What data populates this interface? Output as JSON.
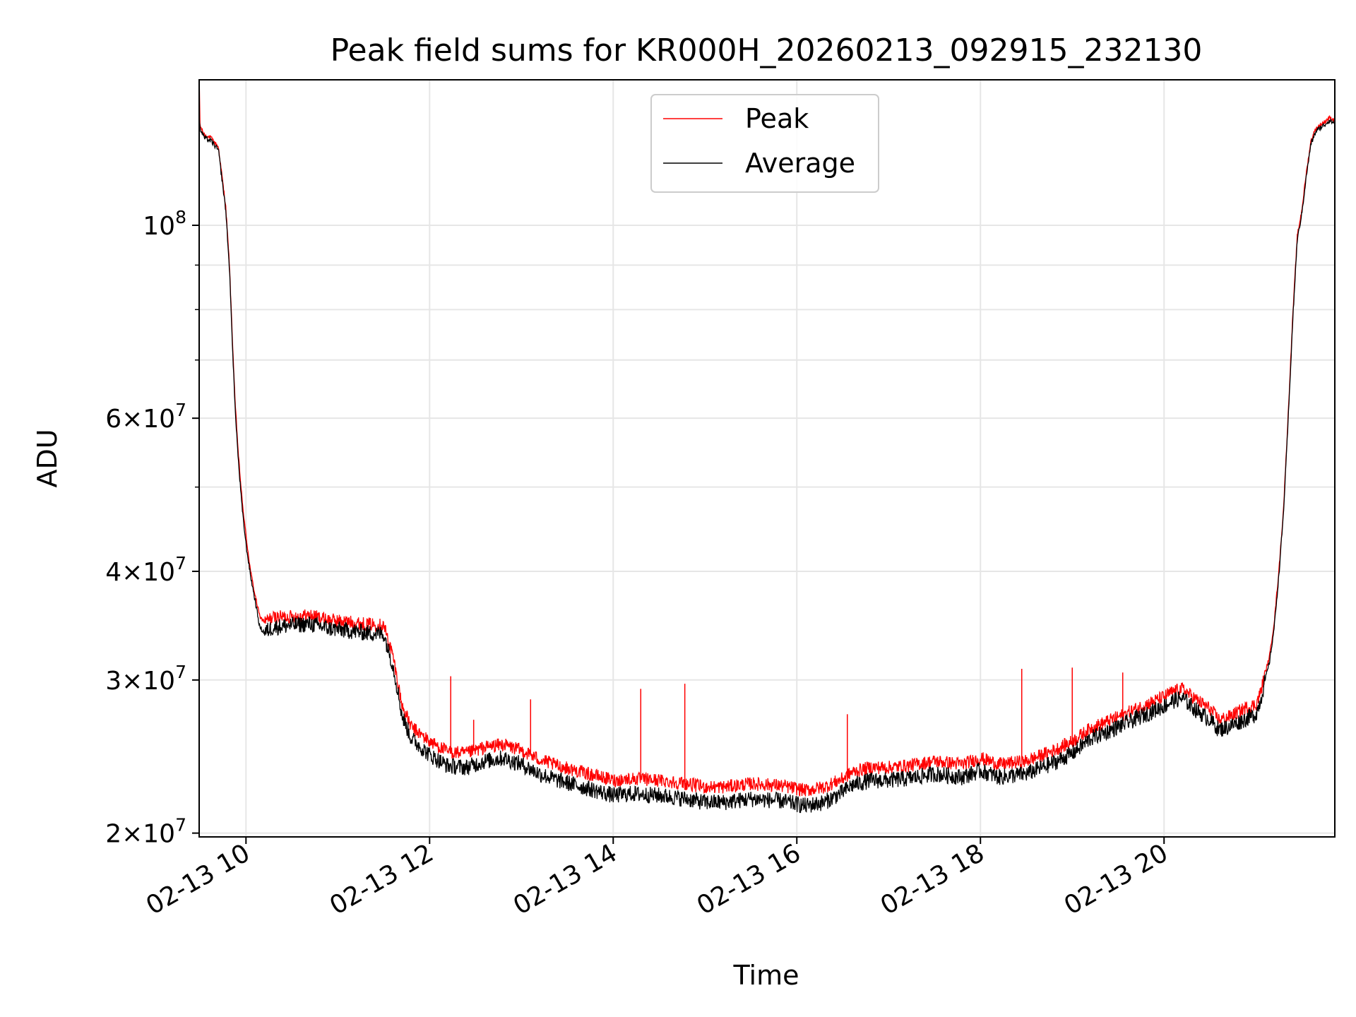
{
  "chart_data": {
    "type": "line",
    "title": "Peak field sums for KR000H_20260213_092915_232130",
    "xlabel": "Time",
    "ylabel": "ADU",
    "yscale": "log",
    "xlim": [
      9.49,
      21.86
    ],
    "ylim": [
      19800000,
      147000000
    ],
    "grid": true,
    "legend_position": "top-center",
    "x_unit": "hours since 02-13 00:00",
    "x_ticks": [
      {
        "value": 10,
        "label": "02-13 10"
      },
      {
        "value": 12,
        "label": "02-13 12"
      },
      {
        "value": 14,
        "label": "02-13 14"
      },
      {
        "value": 16,
        "label": "02-13 16"
      },
      {
        "value": 18,
        "label": "02-13 18"
      },
      {
        "value": 20,
        "label": "02-13 20"
      }
    ],
    "y_ticks": [
      {
        "value": 20000000,
        "mantissa": "2",
        "exp": "7",
        "label": "2 × 10^7"
      },
      {
        "value": 30000000,
        "mantissa": "3",
        "exp": "7",
        "label": "3 × 10^7"
      },
      {
        "value": 40000000,
        "mantissa": "4",
        "exp": "7",
        "label": "4 × 10^7"
      },
      {
        "value": 60000000,
        "mantissa": "6",
        "exp": "7",
        "label": "6 × 10^7"
      },
      {
        "value": 100000000,
        "mantissa": "",
        "exp": "8",
        "label": "10^8"
      }
    ],
    "y_minor_ticks": [
      50000000,
      70000000,
      80000000,
      90000000
    ],
    "series": [
      {
        "name": "Peak",
        "color": "#ff0000",
        "x": [
          9.49,
          9.5,
          9.55,
          9.62,
          9.7,
          9.78,
          9.82,
          9.85,
          9.88,
          9.92,
          9.96,
          10.0,
          10.05,
          10.1,
          10.15,
          10.2,
          10.25,
          10.3,
          10.5,
          10.7,
          10.9,
          11.1,
          11.3,
          11.5,
          11.6,
          11.65,
          11.7,
          11.8,
          12.0,
          12.2,
          12.4,
          12.6,
          12.8,
          13.0,
          13.2,
          13.4,
          13.6,
          13.8,
          14.0,
          14.2,
          14.5,
          14.8,
          15.0,
          15.2,
          15.5,
          15.8,
          16.0,
          16.1,
          16.3,
          16.5,
          16.6,
          16.8,
          17.0,
          17.2,
          17.5,
          17.8,
          18.0,
          18.2,
          18.5,
          18.8,
          19.0,
          19.2,
          19.5,
          19.8,
          20.0,
          20.1,
          20.2,
          20.35,
          20.5,
          20.6,
          20.7,
          20.9,
          21.0,
          21.05,
          21.1,
          21.15,
          21.2,
          21.25,
          21.3,
          21.35,
          21.4,
          21.45,
          21.5,
          21.55,
          21.6,
          21.65,
          21.7,
          21.75,
          21.8,
          21.86
        ],
        "y": [
          150000000,
          130000000,
          127000000,
          126000000,
          123000000,
          105000000,
          90000000,
          75000000,
          63000000,
          54000000,
          48000000,
          44000000,
          40000000,
          37500000,
          35500000,
          35000000,
          35200000,
          35400000,
          35500000,
          35600000,
          35200000,
          35000000,
          34800000,
          34700000,
          32000000,
          30000000,
          28000000,
          26500000,
          25500000,
          24800000,
          24700000,
          25100000,
          25300000,
          24900000,
          24300000,
          23900000,
          23600000,
          23300000,
          23000000,
          23100000,
          23000000,
          22800000,
          22600000,
          22600000,
          22800000,
          22700000,
          22500000,
          22400000,
          22600000,
          23100000,
          23500000,
          23800000,
          23800000,
          23900000,
          24200000,
          24000000,
          24400000,
          24000000,
          24200000,
          24900000,
          25500000,
          26400000,
          27200000,
          28100000,
          28700000,
          29100000,
          29300000,
          28500000,
          27800000,
          27000000,
          27200000,
          27900000,
          28100000,
          29000000,
          30500000,
          32000000,
          35000000,
          40000000,
          47000000,
          60000000,
          78000000,
          97000000,
          104000000,
          115000000,
          125000000,
          129000000,
          130500000,
          131500000,
          133000000,
          132000000
        ]
      },
      {
        "name": "Average",
        "color": "#000000",
        "x": [
          9.49,
          9.5,
          9.55,
          9.62,
          9.7,
          9.78,
          9.82,
          9.85,
          9.88,
          9.92,
          9.96,
          10.0,
          10.05,
          10.1,
          10.15,
          10.2,
          10.25,
          10.3,
          10.5,
          10.7,
          10.9,
          11.1,
          11.3,
          11.5,
          11.6,
          11.65,
          11.7,
          11.8,
          12.0,
          12.2,
          12.4,
          12.6,
          12.8,
          13.0,
          13.2,
          13.4,
          13.6,
          13.8,
          14.0,
          14.2,
          14.5,
          14.8,
          15.0,
          15.2,
          15.5,
          15.8,
          16.0,
          16.1,
          16.3,
          16.5,
          16.6,
          16.8,
          17.0,
          17.2,
          17.5,
          17.8,
          18.0,
          18.2,
          18.5,
          18.8,
          19.0,
          19.2,
          19.5,
          19.8,
          20.0,
          20.1,
          20.2,
          20.35,
          20.5,
          20.6,
          20.7,
          20.9,
          21.0,
          21.05,
          21.1,
          21.15,
          21.2,
          21.25,
          21.3,
          21.35,
          21.4,
          21.45,
          21.5,
          21.55,
          21.6,
          21.65,
          21.7,
          21.75,
          21.8,
          21.86
        ],
        "y": [
          134000000,
          129000000,
          126000000,
          125000000,
          122000000,
          104000000,
          89000000,
          74000000,
          62000000,
          53000000,
          47000000,
          43000000,
          39500000,
          37000000,
          34500000,
          34000000,
          34300000,
          34500000,
          34700000,
          34800000,
          34400000,
          34200000,
          34000000,
          33900000,
          31200000,
          29300000,
          27300000,
          25700000,
          24600000,
          23900000,
          23800000,
          24200000,
          24400000,
          24000000,
          23400000,
          23000000,
          22700000,
          22400000,
          22100000,
          22200000,
          22100000,
          21900000,
          21700000,
          21700000,
          21900000,
          21800000,
          21600000,
          21500000,
          21700000,
          22300000,
          22700000,
          23000000,
          23000000,
          23100000,
          23400000,
          23200000,
          23600000,
          23200000,
          23400000,
          24100000,
          24700000,
          25700000,
          26500000,
          27400000,
          28000000,
          28400000,
          28600000,
          27700000,
          27000000,
          26300000,
          26500000,
          27100000,
          27400000,
          28400000,
          30000000,
          31500000,
          34500000,
          39500000,
          46500000,
          59000000,
          77000000,
          96000000,
          103000000,
          114000000,
          124000000,
          128000000,
          129500000,
          130500000,
          132000000,
          131000000
        ]
      }
    ],
    "notable_spikes": [
      {
        "series": "Peak",
        "x": 12.23,
        "y": 30300000
      },
      {
        "series": "Peak",
        "x": 12.48,
        "y": 27000000
      },
      {
        "series": "Peak",
        "x": 13.1,
        "y": 28500000
      },
      {
        "series": "Peak",
        "x": 14.3,
        "y": 29300000
      },
      {
        "series": "Peak",
        "x": 14.78,
        "y": 29700000
      },
      {
        "series": "Peak",
        "x": 16.55,
        "y": 27400000
      },
      {
        "series": "Peak",
        "x": 18.45,
        "y": 30900000
      },
      {
        "series": "Peak",
        "x": 19.0,
        "y": 31000000
      },
      {
        "series": "Peak",
        "x": 19.55,
        "y": 30600000
      }
    ]
  }
}
